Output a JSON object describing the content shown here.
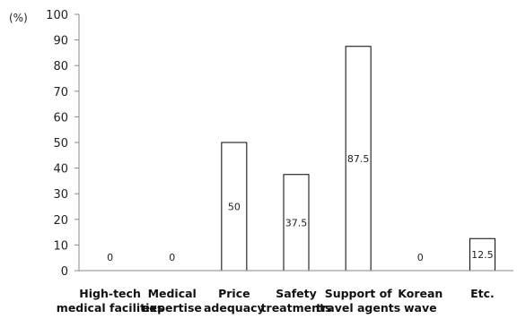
{
  "chart_data": {
    "type": "bar",
    "ylabel": "(%)",
    "ylim": [
      0,
      100
    ],
    "yticks": [
      0,
      10,
      20,
      30,
      40,
      50,
      60,
      70,
      80,
      90,
      100
    ],
    "grid": false,
    "categories": [
      [
        "High-tech",
        "medical facilities"
      ],
      [
        "Medical",
        "expertise"
      ],
      [
        "Price",
        "adequacy"
      ],
      [
        "Safety",
        "treatments"
      ],
      [
        "Support of",
        "travel agents"
      ],
      [
        "Korean",
        "wave"
      ],
      [
        "Etc."
      ]
    ],
    "values": [
      0,
      0,
      50,
      37.5,
      87.5,
      0,
      12.5
    ],
    "data_labels": [
      "0",
      "0",
      "50",
      "37.5",
      "87.5",
      "0",
      "12.5"
    ],
    "bar_color": "#ffffff",
    "bar_stroke": "#000000"
  }
}
